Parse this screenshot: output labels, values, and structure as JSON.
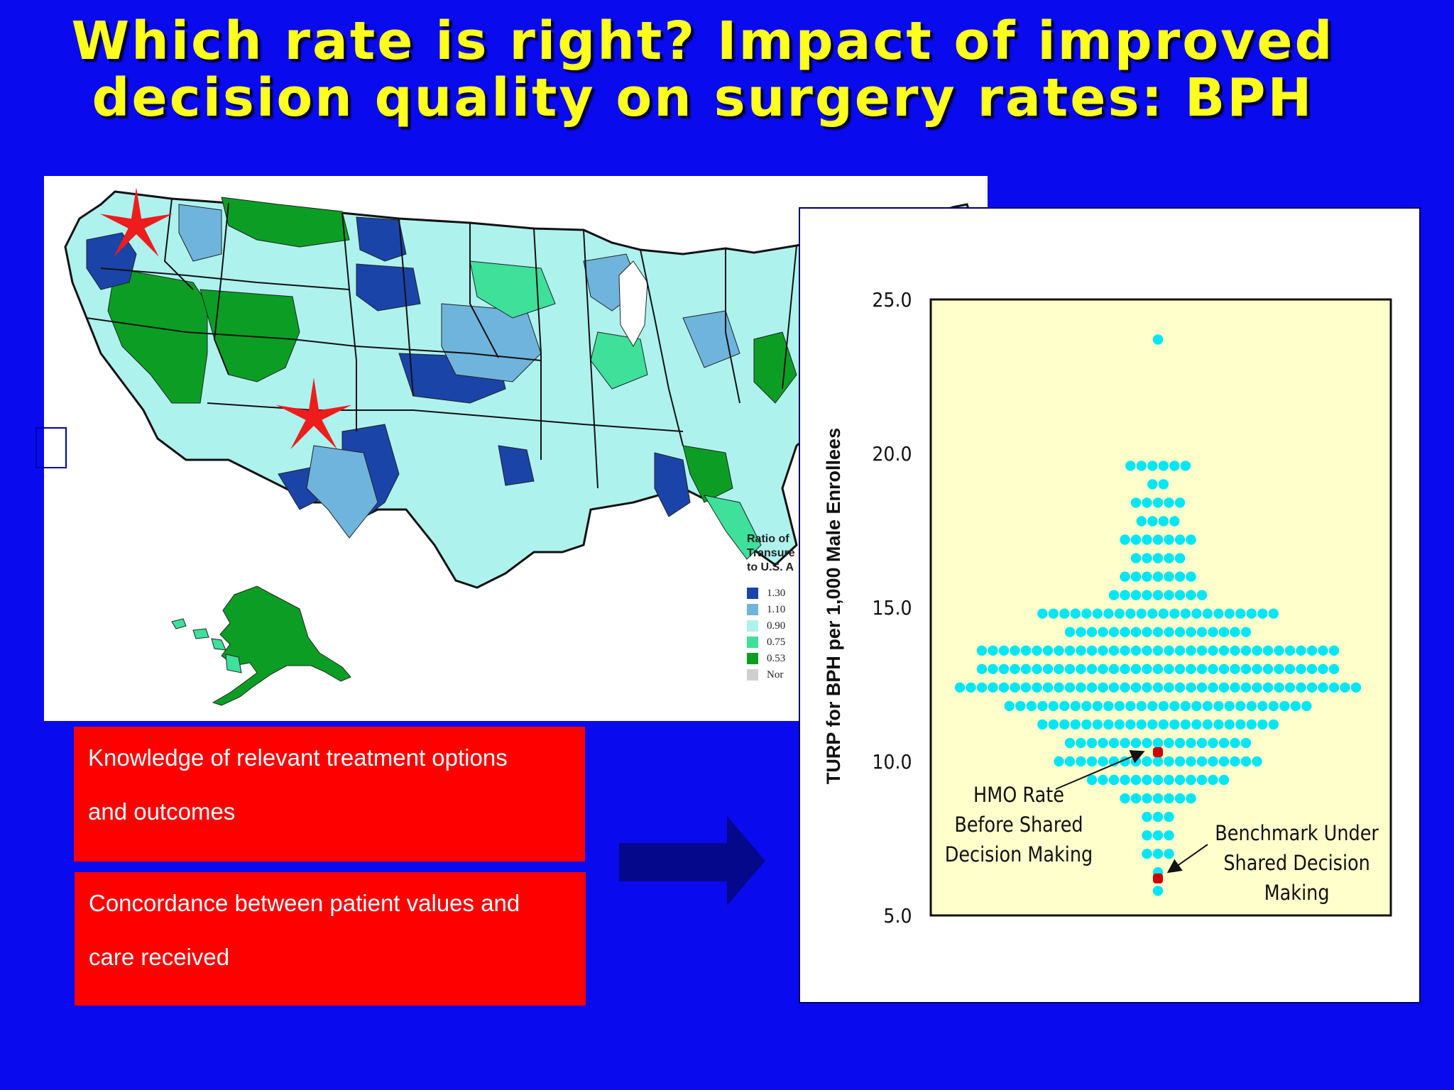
{
  "slide": {
    "title_line1": "Which rate is right?  Impact of improved",
    "title_line2": "decision quality on surgery rates: BPH"
  },
  "map": {
    "legend": {
      "title_lines": [
        "Ratio of",
        "Transure",
        "to U.S. A"
      ],
      "items": [
        {
          "label": "1.30",
          "color": "#1a44a8"
        },
        {
          "label": "1.10",
          "color": "#6fb4dc"
        },
        {
          "label": "0.90",
          "color": "#aef2ee"
        },
        {
          "label": "0.75",
          "color": "#3ee09a"
        },
        {
          "label": "0.53",
          "color": "#0c9e24"
        },
        {
          "label": "Nor",
          "color": "#cfcfcf"
        }
      ]
    },
    "star_color": "#ee1c1c"
  },
  "boxes": {
    "knowledge_line1": "Knowledge of relevant treatment options",
    "knowledge_line2": "and  outcomes",
    "concordance_line1": "Concordance between patient values and",
    "concordance_line2": "care received"
  },
  "chart_data": {
    "type": "scatter",
    "title": "",
    "xlabel": "",
    "ylabel": "TURP for BPH per 1,000 Male Enrollees",
    "ylim": [
      5.0,
      25.0
    ],
    "yticks": [
      "5.0",
      "10.0",
      "15.0",
      "20.0",
      "25.0"
    ],
    "ytick_values": [
      5.0,
      10.0,
      15.0,
      20.0,
      25.0
    ],
    "grid": false,
    "plot_background": "#ffffcc",
    "dot_color": "#00e6f5",
    "highlight_color": "#cc0000",
    "columns": [
      {
        "y": 23.7,
        "count": 1
      },
      {
        "y": 19.6,
        "count": 6
      },
      {
        "y": 19.0,
        "count": 2
      },
      {
        "y": 18.4,
        "count": 5
      },
      {
        "y": 17.8,
        "count": 4
      },
      {
        "y": 17.2,
        "count": 7
      },
      {
        "y": 16.6,
        "count": 5
      },
      {
        "y": 16.0,
        "count": 7
      },
      {
        "y": 15.4,
        "count": 9
      },
      {
        "y": 14.8,
        "count": 22
      },
      {
        "y": 14.2,
        "count": 17
      },
      {
        "y": 13.6,
        "count": 33
      },
      {
        "y": 13.0,
        "count": 33
      },
      {
        "y": 12.4,
        "count": 37
      },
      {
        "y": 11.8,
        "count": 28
      },
      {
        "y": 11.2,
        "count": 22
      },
      {
        "y": 10.6,
        "count": 17
      },
      {
        "y": 10.0,
        "count": 19
      },
      {
        "y": 9.4,
        "count": 13
      },
      {
        "y": 8.8,
        "count": 7
      },
      {
        "y": 8.2,
        "count": 3
      },
      {
        "y": 7.6,
        "count": 3
      },
      {
        "y": 7.0,
        "count": 3
      },
      {
        "y": 6.4,
        "count": 1
      },
      {
        "y": 5.8,
        "count": 1
      }
    ],
    "highlights": [
      {
        "label": "HMO Rate Before Shared Decision Making",
        "y": 10.3
      },
      {
        "label": "Benchmark Under Shared Decision Making",
        "y": 6.2
      }
    ],
    "annotations": {
      "hmo_lines": [
        "HMO Rate",
        "Before Shared",
        "Decision Making"
      ],
      "benchmark_lines": [
        "Benchmark Under",
        "Shared Decision",
        "Making"
      ]
    }
  }
}
